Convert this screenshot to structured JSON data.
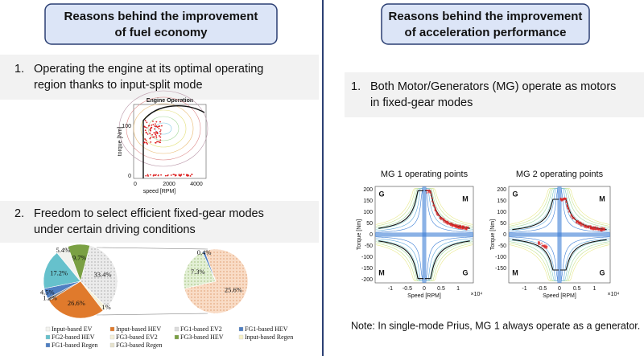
{
  "left": {
    "heading": [
      "Reasons behind the improvement",
      "of fuel economy"
    ],
    "item1": {
      "number": "1.",
      "lines": [
        "Operating the engine at its optimal operating",
        "region thanks to input-split mode"
      ]
    },
    "engine_plot": {
      "title": "Engine Operation",
      "ylabel": "torque [Nm]",
      "xlabel": "speed [RPM]",
      "yticks": [
        "0",
        "100"
      ],
      "xticks": [
        "0",
        "2000",
        "4000"
      ]
    },
    "item2": {
      "number": "2.",
      "lines": [
        "Freedom to select efficient fixed-gear modes",
        "under certain driving conditions"
      ]
    },
    "pie": {
      "slices": [
        {
          "label": "9.7%",
          "value": 9.7,
          "color": "#7aa043"
        },
        {
          "label": "33.4%",
          "value": 33.4,
          "color": "#dcdcdc"
        },
        {
          "label": "2.1%",
          "value": 2.1,
          "color": "#f4f0d8"
        },
        {
          "label": "26.6%",
          "value": 26.6,
          "color": "#e07a2c"
        },
        {
          "label": "1.2%",
          "value": 1.2,
          "color": "#8a8a8a"
        },
        {
          "label": "4.5%",
          "value": 4.5,
          "color": "#4f7fc2"
        },
        {
          "label": "17.2%",
          "value": 17.2,
          "color": "#66c1cc"
        },
        {
          "label": "5.4%",
          "value": 5.4,
          "color": "#f2f2ee"
        }
      ],
      "detail": [
        {
          "label": "25.6%",
          "value": 25.6,
          "color": "#f7c9a8"
        },
        {
          "label": "7.3%",
          "value": 7.3,
          "color": "#cfe6b8"
        },
        {
          "label": "0.4%",
          "value": 0.4,
          "color": "#4f7fc2"
        }
      ],
      "legend": [
        {
          "name": "Input-based EV",
          "color": "#f2f2ee"
        },
        {
          "name": "Input-based HEV",
          "color": "#e07a2c"
        },
        {
          "name": "FG1-based EV2",
          "color": "#dcdcdc"
        },
        {
          "name": "FG1-based HEV",
          "color": "#4f7fc2"
        },
        {
          "name": "FG2-based HEV",
          "color": "#66c1cc"
        },
        {
          "name": "FG3-based EV2",
          "color": "#f4f0d8"
        },
        {
          "name": "FG3-based HEV",
          "color": "#7aa043"
        },
        {
          "name": "Input-based Regen",
          "color": "#f6f1c8"
        },
        {
          "name": "FG1-based Regen",
          "color": "#4f7fc2"
        },
        {
          "name": "FG3-based Regen",
          "color": "#e6e2cc"
        }
      ]
    }
  },
  "right": {
    "heading": [
      "Reasons behind the improvement",
      "of acceleration performance"
    ],
    "item1": {
      "number": "1.",
      "lines": [
        "Both Motor/Generators (MG) operate as motors",
        "in fixed-gear modes"
      ]
    },
    "plots": [
      {
        "title": "MG 1 operating points",
        "ylabel": "Torque [Nm]",
        "xlabel": "Speed [RPM]",
        "exponent": "×10⁴",
        "yticks": [
          "200",
          "150",
          "100",
          "50",
          "0",
          "-50",
          "-100",
          "-150",
          "-200"
        ],
        "xticks": [
          "-1",
          "-0.5",
          "0",
          "0.5",
          "1"
        ],
        "quadrants": [
          "G",
          "M",
          "M",
          "G"
        ]
      },
      {
        "title": "MG 2 operating points",
        "ylabel": "Torque [Nm]",
        "xlabel": "Speed [RPM]",
        "exponent": "×10⁴",
        "yticks": [
          "200",
          "150",
          "100",
          "50",
          "0",
          "-50",
          "-100",
          "-150"
        ],
        "xticks": [
          "-1",
          "-0.5",
          "0",
          "0.5",
          "1"
        ],
        "quadrants": [
          "G",
          "M",
          "M",
          "G"
        ]
      }
    ],
    "note": "Note: In single-mode Prius, MG 1 always operate as a generator."
  }
}
